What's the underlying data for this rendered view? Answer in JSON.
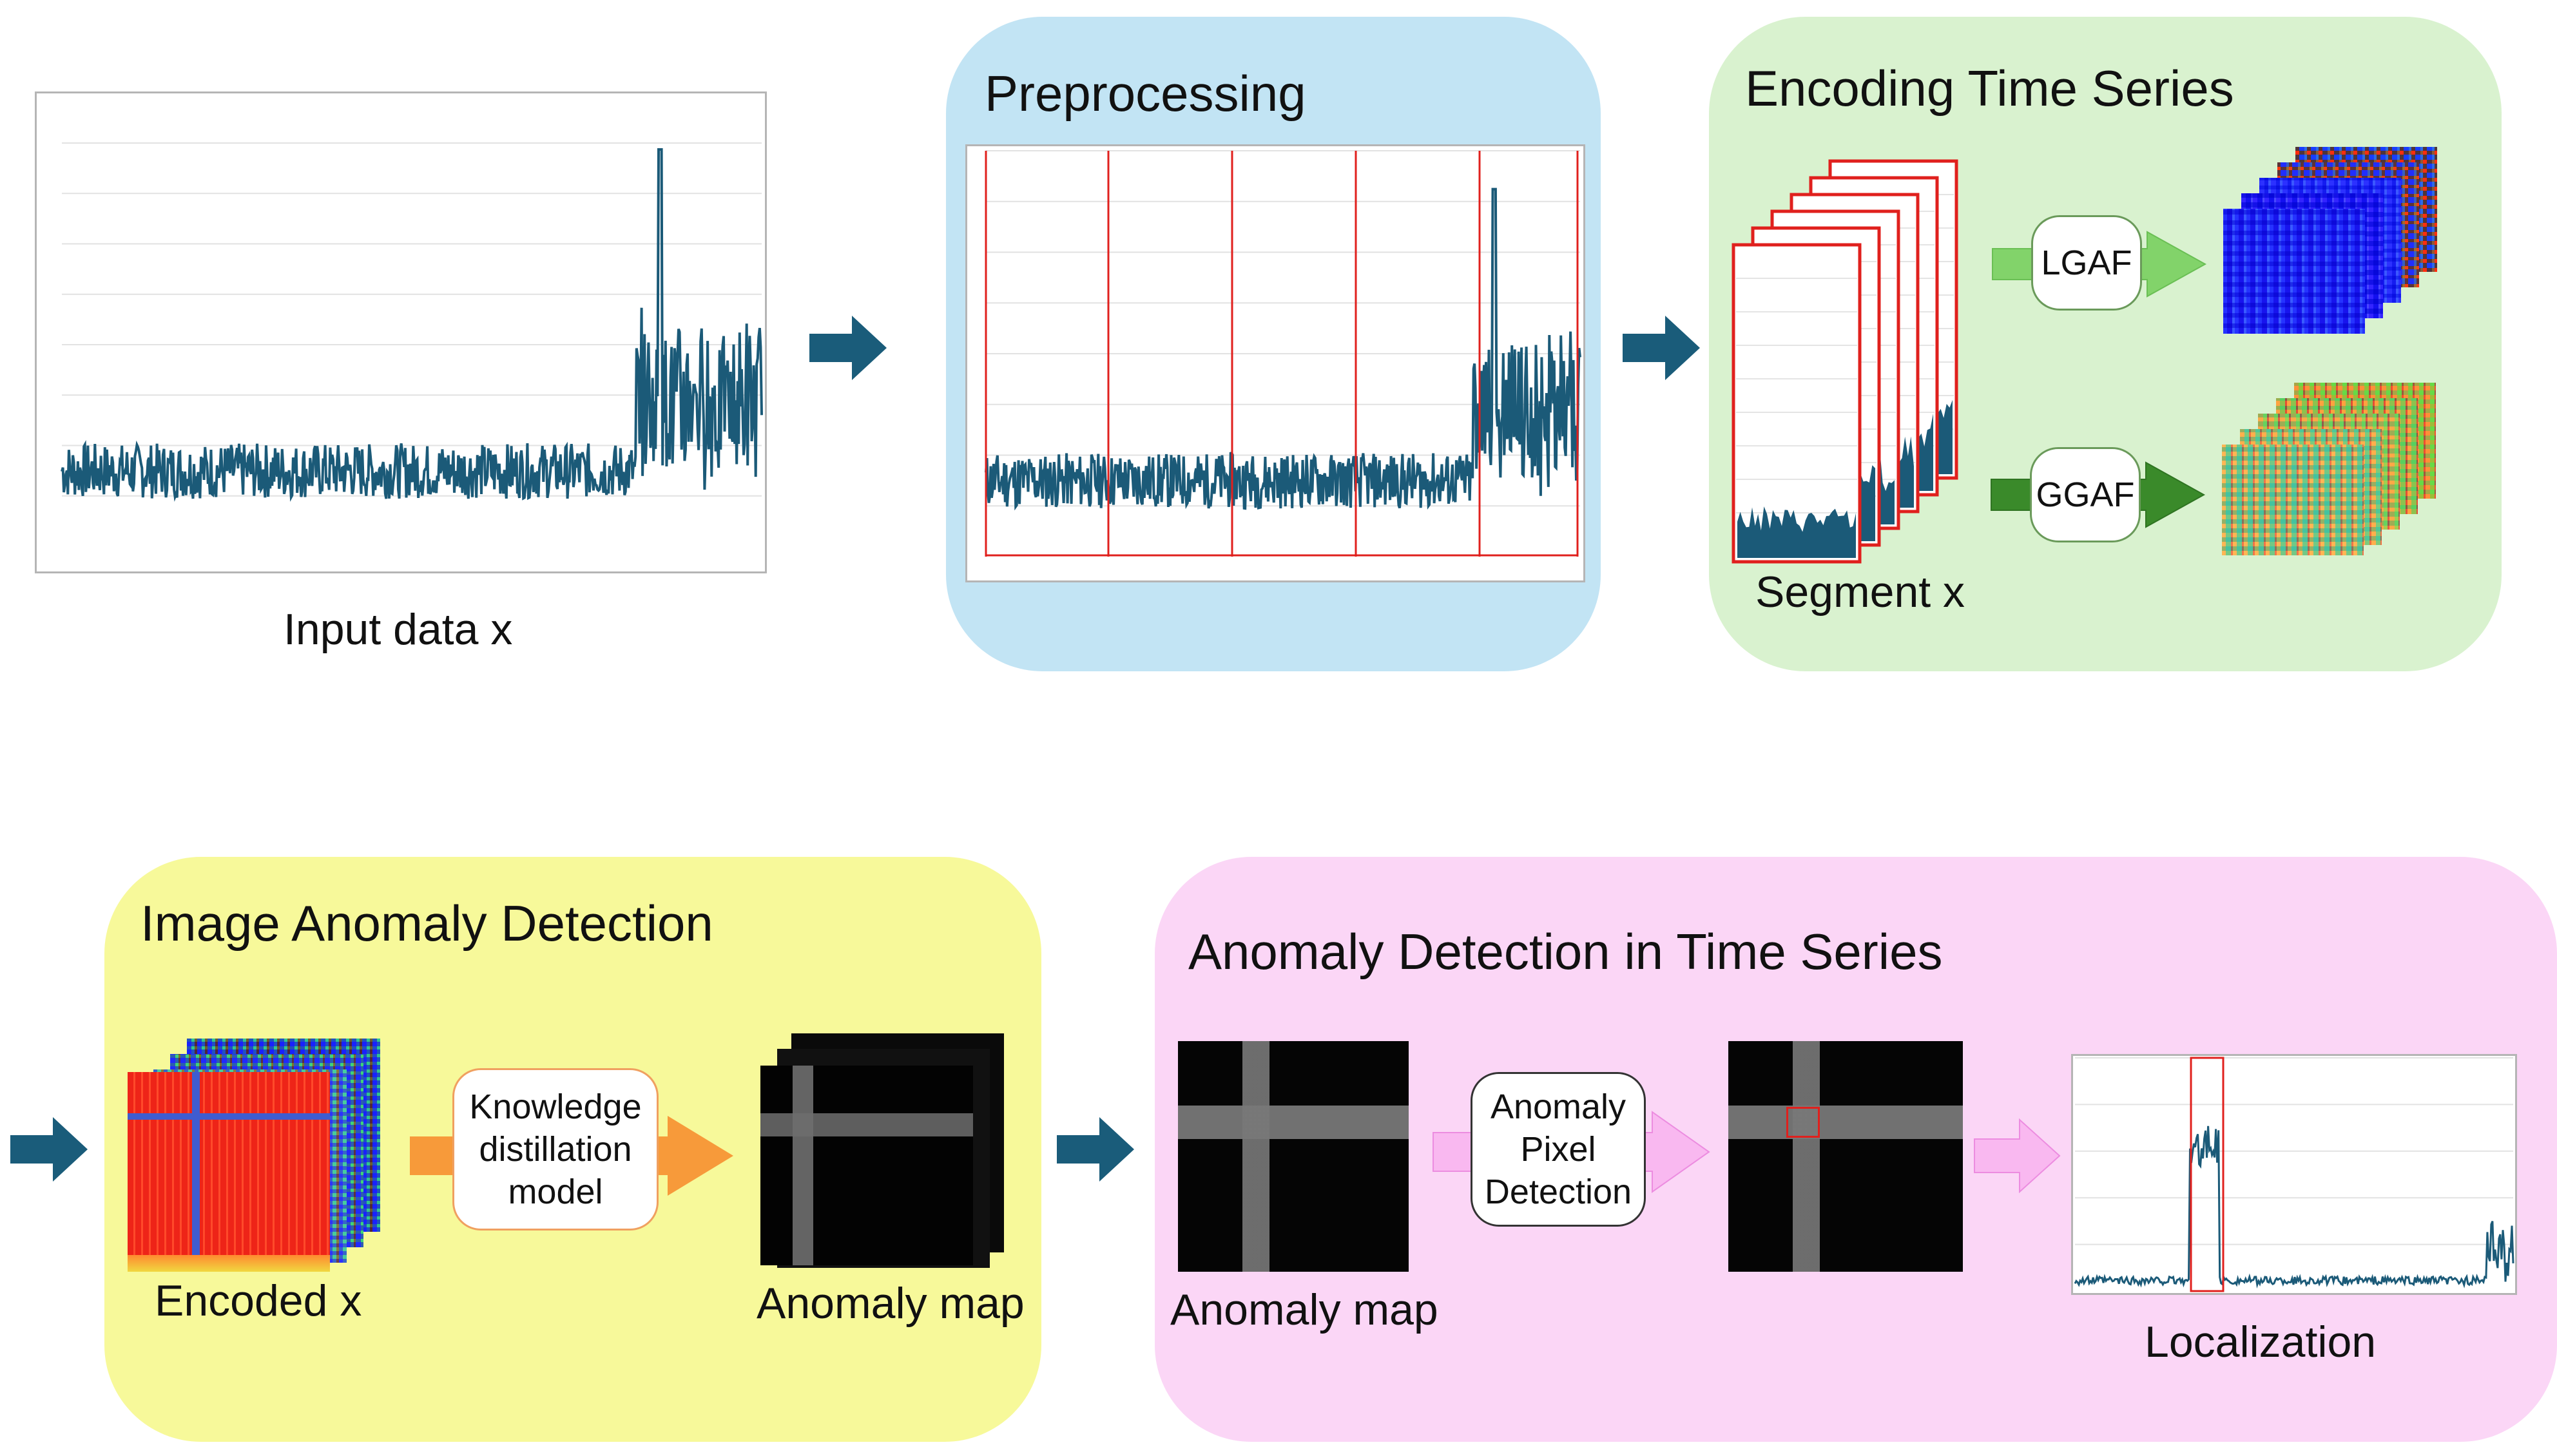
{
  "diagram": {
    "input": {
      "caption": "Input data x"
    },
    "preprocessing": {
      "title": "Preprocessing"
    },
    "encoding": {
      "title": "Encoding Time Series",
      "segment_caption": "Segment x",
      "lgaf_label": "LGAF",
      "ggaf_label": "GGAF"
    },
    "image_detection": {
      "title": "Image Anomaly Detection",
      "encoded_caption": "Encoded x",
      "model_label": "Knowledge\ndistillation\nmodel",
      "map_caption": "Anomaly map"
    },
    "ts_detection": {
      "title": "Anomaly Detection in Time Series",
      "map_caption": "Anomaly map",
      "pixel_label": "Anomaly\nPixel\nDetection",
      "localization_caption": "Localization"
    }
  },
  "colors": {
    "series": "#1b5a78",
    "flow_arrow": "#1a5c7a",
    "segment_border": "#e0201d",
    "panel_blue": "#c2e4f4",
    "panel_green": "#d9f2cf",
    "panel_yellow": "#f7f99a",
    "panel_pink": "#fbd6f6",
    "lgaf_arrow": "#82d36a",
    "ggaf_arrow": "#3a8a2a",
    "kd_arrow": "#f79a3a",
    "pink_arrow": "#f9b8f0"
  }
}
